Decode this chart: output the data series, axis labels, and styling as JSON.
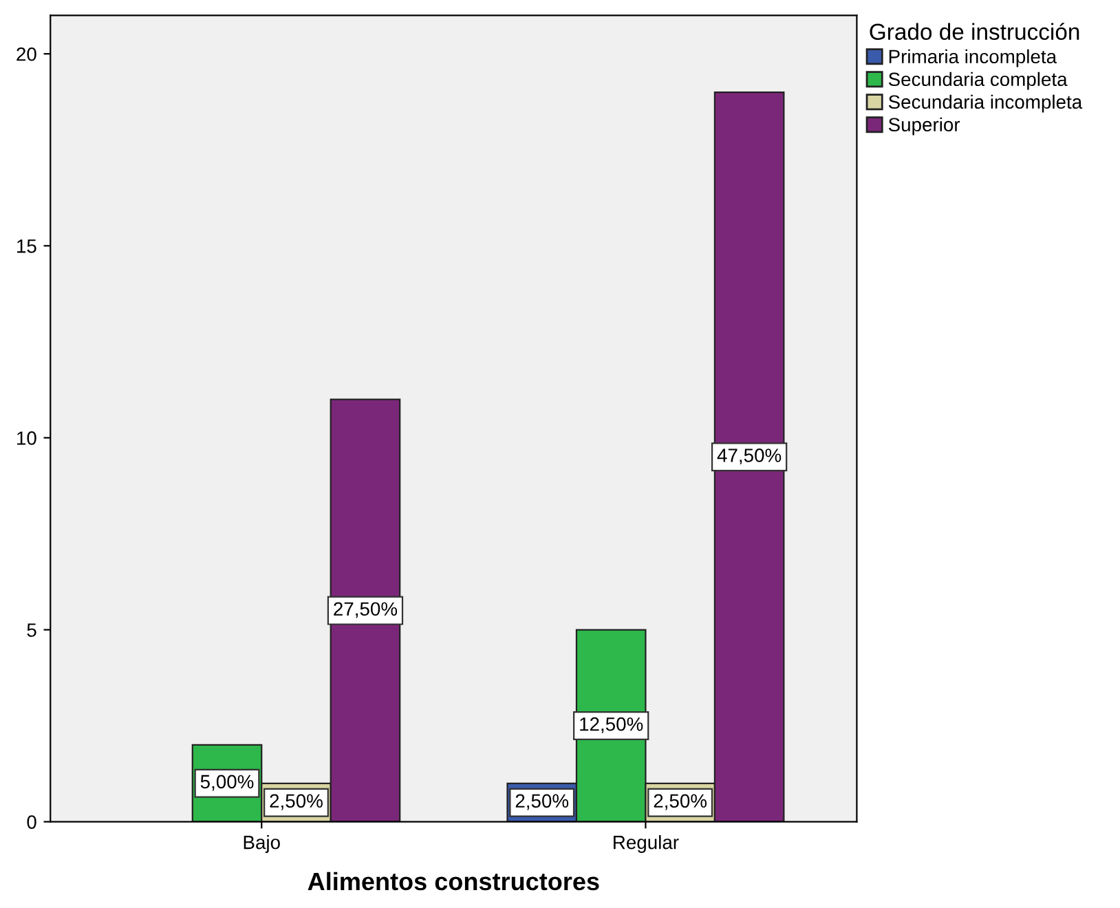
{
  "chart_data": {
    "type": "bar",
    "xlabel": "Alimentos constructores",
    "legend_title": "Grado de instrucción",
    "categories": [
      "Bajo",
      "Regular"
    ],
    "series": [
      {
        "name": "Primaria incompleta",
        "color": "#3a5bab",
        "values": [
          null,
          1
        ]
      },
      {
        "name": "Secundaria completa",
        "color": "#2eb84b",
        "values": [
          2,
          5
        ]
      },
      {
        "name": "Secundaria incompleta",
        "color": "#d9d5a3",
        "values": [
          1,
          1
        ]
      },
      {
        "name": "Superior",
        "color": "#7b2779",
        "values": [
          11,
          19
        ]
      }
    ],
    "annotations": [
      "2,50%",
      "5,00%",
      "12,50%",
      "2,50%",
      "2,50%",
      "27,50%",
      "47,50%"
    ],
    "ylim": [
      0,
      21
    ],
    "yticks": [
      0,
      5,
      10,
      15,
      20
    ],
    "grid": false,
    "legend": "top right"
  }
}
